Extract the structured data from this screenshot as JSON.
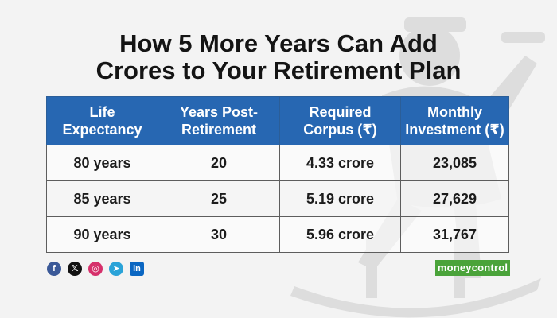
{
  "title_line1": "How 5 More Years Can Add",
  "title_line2": "Crores to Your Retirement Plan",
  "chart_data": {
    "type": "table",
    "headers": {
      "life_expectancy_1": "Life",
      "life_expectancy_2": "Expectancy",
      "years_post_1": "Years Post-",
      "years_post_2": "Retirement",
      "corpus_1": "Required",
      "corpus_2": "Corpus (₹)",
      "monthly_1": "Monthly",
      "monthly_2": "Investment (₹)"
    },
    "rows": [
      {
        "life_expectancy": "80 years",
        "years_post_retirement": "20",
        "required_corpus": "4.33 crore",
        "monthly_investment": "23,085"
      },
      {
        "life_expectancy": "85 years",
        "years_post_retirement": "25",
        "required_corpus": "5.19 crore",
        "monthly_investment": "27,629"
      },
      {
        "life_expectancy": "90 years",
        "years_post_retirement": "30",
        "required_corpus": "5.96 crore",
        "monthly_investment": "31,767"
      }
    ]
  },
  "social": [
    {
      "name": "facebook-icon",
      "glyph": "f",
      "color": "#3b5998"
    },
    {
      "name": "x-icon",
      "glyph": "𝕏",
      "color": "#111111"
    },
    {
      "name": "instagram-icon",
      "glyph": "◎",
      "color": "#d6306b"
    },
    {
      "name": "telegram-icon",
      "glyph": "➤",
      "color": "#2aa3d8"
    },
    {
      "name": "linkedin-icon",
      "glyph": "in",
      "color": "#0a66c2"
    }
  ],
  "brand": {
    "logo_text": "moneycontrol",
    "color": "#4aa33a",
    "accent": "#2767b2"
  }
}
